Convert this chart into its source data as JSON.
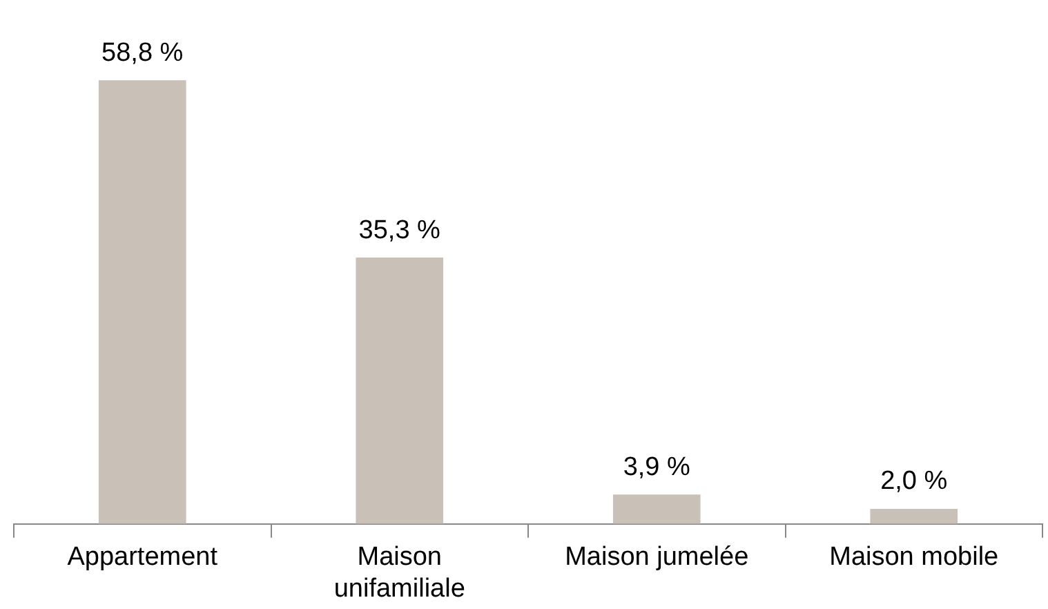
{
  "chart_data": {
    "type": "bar",
    "categories": [
      "Appartement",
      "Maison\nunifamiliale",
      "Maison jumelée",
      "Maison mobile"
    ],
    "values": [
      58.8,
      35.3,
      3.9,
      2.0
    ],
    "value_labels": [
      "58,8 %",
      "35,3 %",
      "3,9 %",
      "2,0 %"
    ],
    "color": "#c9c0b8",
    "grid": false,
    "legend": false
  }
}
